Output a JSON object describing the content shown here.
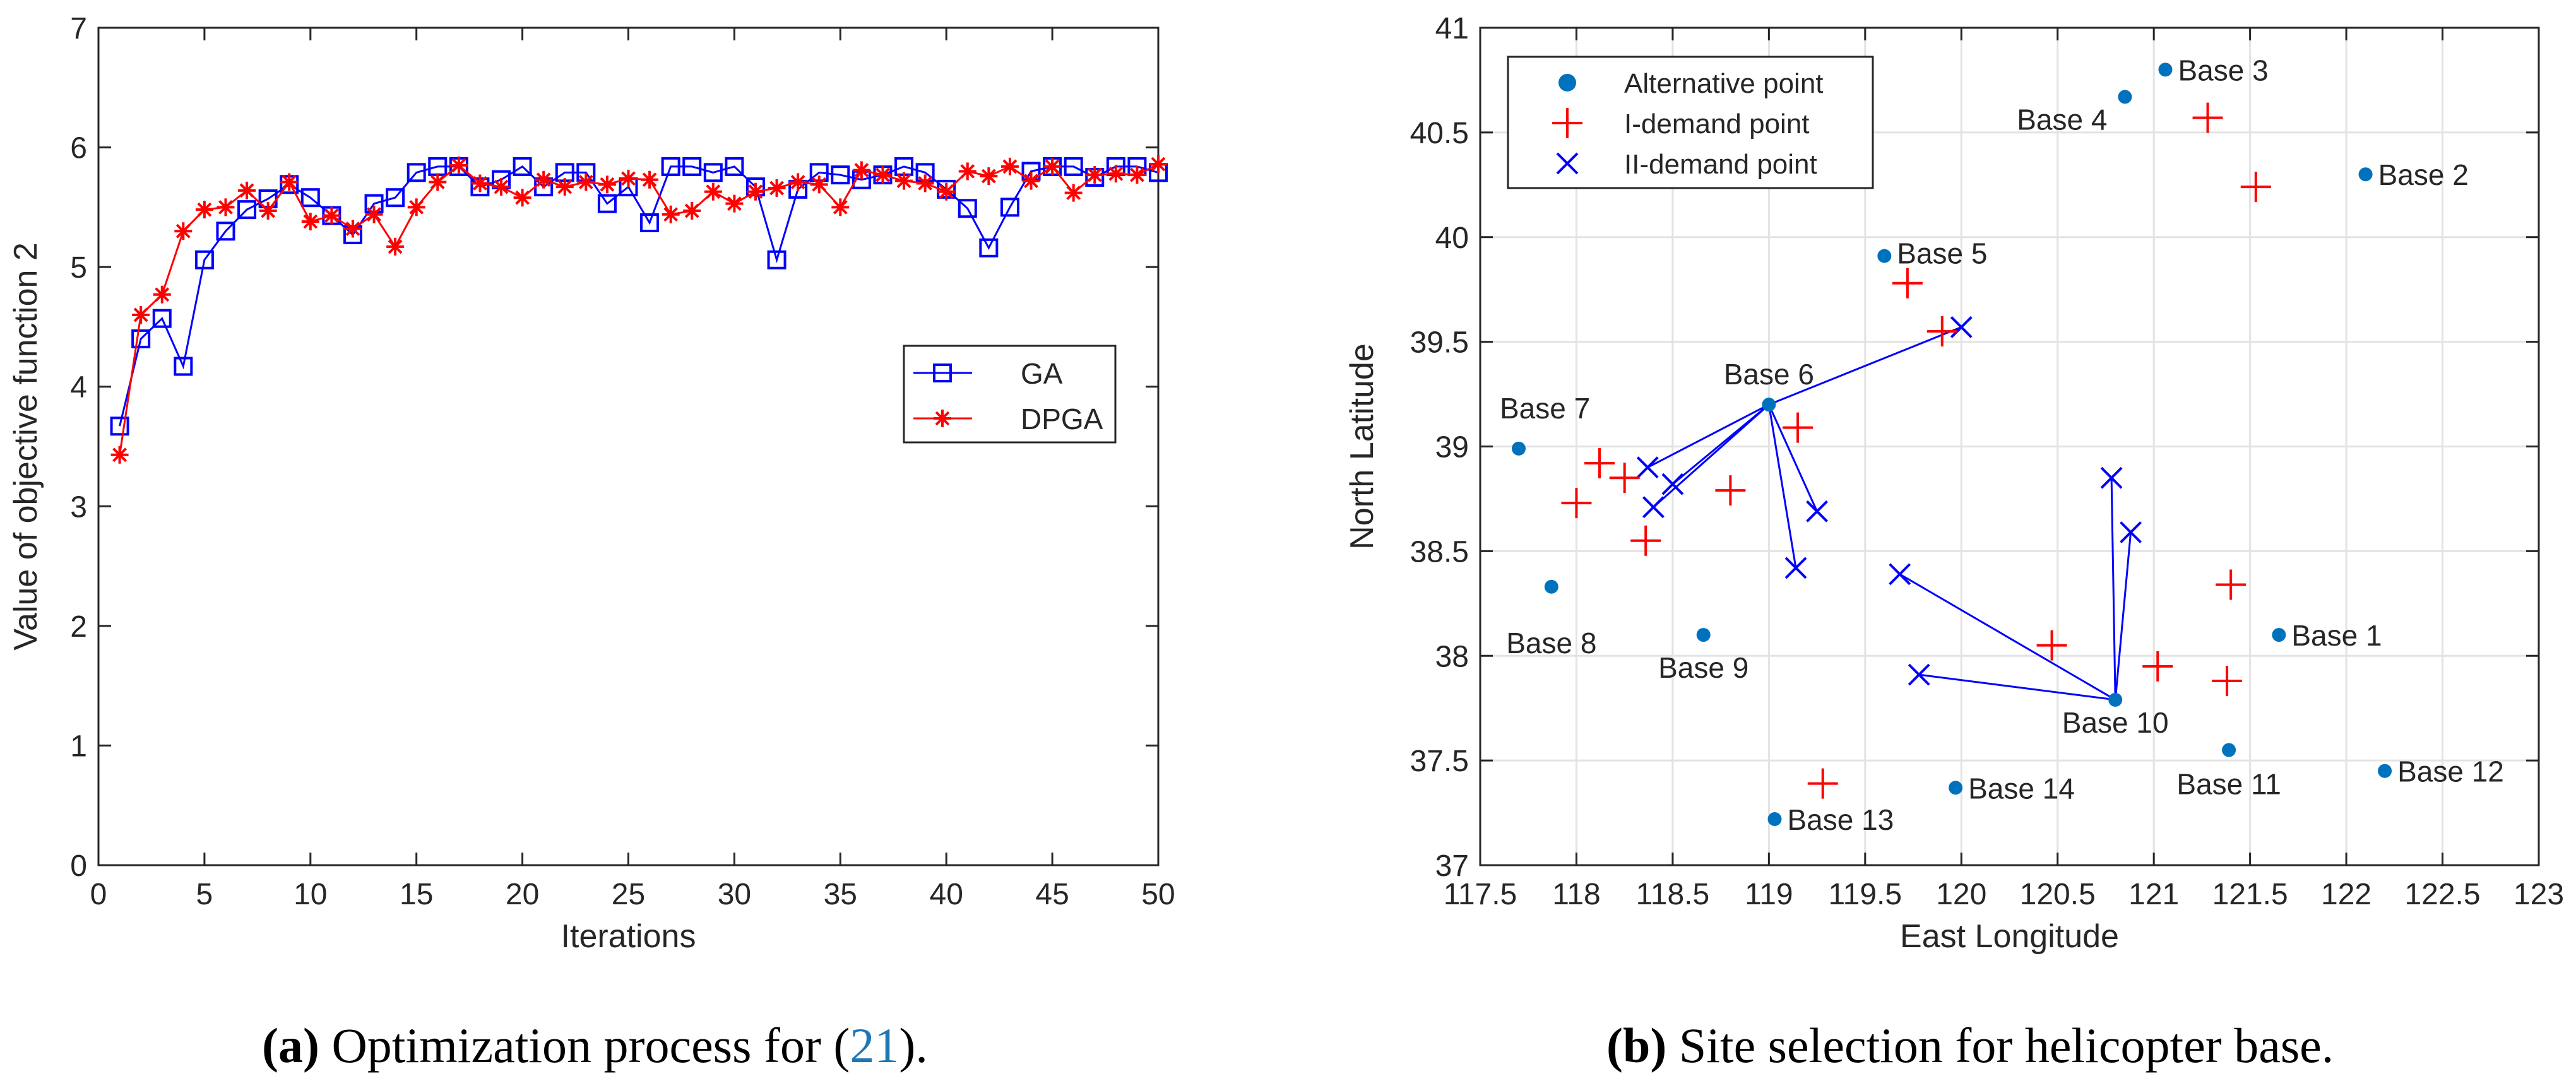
{
  "chart_data": [
    {
      "type": "line",
      "xlabel": "Iterations",
      "ylabel": "Value of objective function 2",
      "xlim": [
        0,
        50
      ],
      "ylim": [
        0,
        7
      ],
      "xticks": [
        "0",
        "5",
        "10",
        "15",
        "20",
        "25",
        "30",
        "35",
        "40",
        "45",
        "50"
      ],
      "yticks": [
        "0",
        "1",
        "2",
        "3",
        "4",
        "5",
        "6",
        "7"
      ],
      "grid": false,
      "legend_position": "right",
      "x": [
        1,
        2,
        3,
        4,
        5,
        6,
        7,
        8,
        9,
        10,
        11,
        12,
        13,
        14,
        15,
        16,
        17,
        18,
        19,
        20,
        21,
        22,
        23,
        24,
        25,
        26,
        27,
        28,
        29,
        30,
        31,
        32,
        33,
        34,
        35,
        36,
        37,
        38,
        39,
        40,
        41,
        42,
        43,
        44,
        45,
        46,
        47,
        48,
        49,
        50
      ],
      "series": [
        {
          "name": "GA",
          "color": "#0000ff",
          "marker": "square",
          "values": [
            3.67,
            4.4,
            4.57,
            4.17,
            5.06,
            5.3,
            5.48,
            5.57,
            5.69,
            5.58,
            5.43,
            5.27,
            5.53,
            5.58,
            5.79,
            5.84,
            5.84,
            5.67,
            5.73,
            5.84,
            5.67,
            5.79,
            5.79,
            5.53,
            5.67,
            5.37,
            5.84,
            5.84,
            5.79,
            5.84,
            5.67,
            5.06,
            5.65,
            5.79,
            5.77,
            5.73,
            5.77,
            5.84,
            5.79,
            5.65,
            5.49,
            5.16,
            5.5,
            5.8,
            5.84,
            5.84,
            5.75,
            5.84,
            5.84,
            5.79
          ]
        },
        {
          "name": "DPGA",
          "color": "#ff0000",
          "marker": "star",
          "values": [
            3.43,
            4.6,
            4.77,
            5.3,
            5.48,
            5.5,
            5.64,
            5.47,
            5.71,
            5.38,
            5.43,
            5.32,
            5.44,
            5.17,
            5.5,
            5.71,
            5.85,
            5.7,
            5.67,
            5.58,
            5.73,
            5.67,
            5.71,
            5.69,
            5.74,
            5.73,
            5.44,
            5.47,
            5.63,
            5.53,
            5.63,
            5.66,
            5.71,
            5.69,
            5.5,
            5.81,
            5.77,
            5.72,
            5.7,
            5.63,
            5.8,
            5.76,
            5.84,
            5.72,
            5.84,
            5.62,
            5.77,
            5.78,
            5.77,
            5.86
          ]
        }
      ],
      "caption": {
        "label": "(a)",
        "text": " Optimization process for (",
        "ref": "21",
        "end": ")."
      }
    },
    {
      "type": "scatter",
      "xlabel": "East Longitude",
      "ylabel": "North Latitude",
      "xlim": [
        117.5,
        123
      ],
      "ylim": [
        37,
        41
      ],
      "xticks": [
        "117.5",
        "118",
        "118.5",
        "119",
        "119.5",
        "120",
        "120.5",
        "121",
        "121.5",
        "122",
        "122.5",
        "123"
      ],
      "yticks": [
        "37",
        "37.5",
        "38",
        "38.5",
        "39",
        "39.5",
        "40",
        "40.5",
        "41"
      ],
      "grid": true,
      "legend_position": "top-left",
      "legend": [
        {
          "name": "Alternative point",
          "marker": "dot",
          "color": "#0072bd"
        },
        {
          "name": "I-demand point",
          "marker": "plus",
          "color": "#ff0000"
        },
        {
          "name": "II-demand point",
          "marker": "x",
          "color": "#0000ff"
        }
      ],
      "bases": [
        {
          "label": "Base 1",
          "x": 121.65,
          "y": 38.1
        },
        {
          "label": "Base 2",
          "x": 122.1,
          "y": 40.3
        },
        {
          "label": "Base 3",
          "x": 121.06,
          "y": 40.8
        },
        {
          "label": "Base 4",
          "x": 120.85,
          "y": 40.67
        },
        {
          "label": "Base 5",
          "x": 119.6,
          "y": 39.91
        },
        {
          "label": "Base 6",
          "x": 119.0,
          "y": 39.2
        },
        {
          "label": "Base 7",
          "x": 117.7,
          "y": 38.99
        },
        {
          "label": "Base 8",
          "x": 117.87,
          "y": 38.33
        },
        {
          "label": "Base 9",
          "x": 118.66,
          "y": 38.1
        },
        {
          "label": "Base 10",
          "x": 120.8,
          "y": 37.79
        },
        {
          "label": "Base 11",
          "x": 121.39,
          "y": 37.55
        },
        {
          "label": "Base 12",
          "x": 122.2,
          "y": 37.45
        },
        {
          "label": "Base 13",
          "x": 119.03,
          "y": 37.22
        },
        {
          "label": "Base 14",
          "x": 119.97,
          "y": 37.37
        }
      ],
      "demand_I": [
        [
          121.28,
          40.57
        ],
        [
          121.53,
          40.24
        ],
        [
          119.72,
          39.78
        ],
        [
          119.9,
          39.55
        ],
        [
          119.15,
          39.09
        ],
        [
          118.12,
          38.92
        ],
        [
          118.25,
          38.85
        ],
        [
          118.8,
          38.79
        ],
        [
          118.0,
          38.73
        ],
        [
          118.36,
          38.55
        ],
        [
          121.4,
          38.34
        ],
        [
          120.47,
          38.05
        ],
        [
          121.02,
          37.95
        ],
        [
          121.38,
          37.88
        ],
        [
          119.28,
          37.39
        ]
      ],
      "demand_II": [
        [
          120.0,
          39.57
        ],
        [
          118.37,
          38.9
        ],
        [
          118.5,
          38.82
        ],
        [
          118.4,
          38.71
        ],
        [
          119.25,
          38.69
        ],
        [
          119.14,
          38.42
        ],
        [
          119.68,
          38.39
        ],
        [
          119.78,
          37.91
        ],
        [
          120.78,
          38.85
        ],
        [
          120.88,
          38.59
        ]
      ],
      "links": [
        {
          "from": "Base 6",
          "to": [
            [
              120.0,
              39.57
            ],
            [
              118.37,
              38.9
            ],
            [
              118.5,
              38.82
            ],
            [
              118.4,
              38.71
            ],
            [
              119.25,
              38.69
            ],
            [
              119.14,
              38.42
            ]
          ]
        },
        {
          "from": "Base 10",
          "to": [
            [
              119.68,
              38.39
            ],
            [
              119.78,
              37.91
            ],
            [
              120.78,
              38.85
            ],
            [
              120.88,
              38.59
            ]
          ]
        }
      ],
      "caption": {
        "label": "(b)",
        "text": " Site selection for helicopter base."
      }
    }
  ]
}
